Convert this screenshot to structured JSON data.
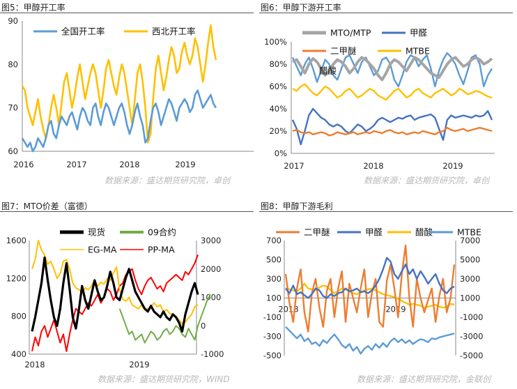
{
  "sources": {
    "top_left": "数据来源：盛达期货研究院，卓创",
    "top_right": "数据来源：盛达期货研究院，卓创",
    "bottom_left": "数据来源：盛达期货研究院，WIND",
    "bottom_right": "数据来源：盛达期货研究院，金联创"
  },
  "chart_data": [
    {
      "title": "图5：甲醇开工率",
      "type": "line",
      "x_ticks": [
        "2016",
        "2017",
        "2018",
        "2019"
      ],
      "ylim": [
        60,
        90
      ],
      "y_ticks": [
        "60",
        "70",
        "80",
        "90"
      ],
      "legend_position": "top",
      "series": [
        {
          "name": "全国开工率",
          "color": "#5B9BD5",
          "values": [
            63,
            62,
            61,
            62,
            60,
            61,
            63,
            62,
            61,
            63,
            66,
            67,
            64,
            63,
            66,
            68,
            67,
            66,
            68,
            69,
            67,
            65,
            68,
            70,
            69,
            67,
            66,
            70,
            71,
            68,
            66,
            69,
            71,
            70,
            68,
            66,
            68,
            70,
            71,
            69,
            66,
            64,
            66,
            69,
            71,
            68,
            66,
            62,
            63,
            67,
            70,
            71,
            69,
            66,
            68,
            70,
            72,
            71,
            69,
            67,
            70,
            71,
            72,
            71,
            69,
            70,
            73,
            74,
            72,
            70,
            71,
            72,
            73,
            71,
            70
          ]
        },
        {
          "name": "西北开工率",
          "color": "#FFC000",
          "values": [
            75,
            74,
            70,
            68,
            66,
            69,
            72,
            68,
            65,
            63,
            66,
            70,
            73,
            70,
            66,
            71,
            76,
            78,
            74,
            70,
            73,
            77,
            80,
            76,
            72,
            75,
            78,
            80,
            78,
            74,
            70,
            74,
            79,
            81,
            78,
            75,
            73,
            77,
            80,
            78,
            74,
            70,
            66,
            72,
            78,
            80,
            76,
            70,
            62,
            64,
            72,
            79,
            82,
            78,
            74,
            77,
            81,
            84,
            82,
            78,
            79,
            83,
            85,
            82,
            80,
            82,
            86,
            84,
            80,
            76,
            80,
            85,
            89,
            84,
            81
          ]
        }
      ]
    },
    {
      "title": "图6：甲醇下游开工率",
      "type": "line",
      "x_ticks": [
        "2017",
        "2018",
        "2019"
      ],
      "ylim": [
        0,
        100
      ],
      "y_ticks": [
        "0%",
        "20%",
        "40%",
        "60%",
        "80%",
        "100%"
      ],
      "legend_position": "top",
      "series": [
        {
          "name": "MTO/MTP",
          "color": "#A5A5A5",
          "values": [
            82,
            84,
            78,
            72,
            80,
            85,
            82,
            76,
            70,
            74,
            80,
            84,
            82,
            78,
            72,
            76,
            82,
            86,
            84,
            80,
            76,
            70,
            66,
            72,
            80,
            84,
            82,
            78,
            74,
            80,
            86,
            84,
            80,
            76,
            72,
            70,
            68,
            74,
            80,
            84,
            86,
            82,
            78,
            80,
            84,
            86,
            84,
            80,
            82,
            85
          ]
        },
        {
          "name": "甲醛",
          "color": "#4472C4",
          "values": [
            30,
            22,
            8,
            20,
            34,
            40,
            36,
            32,
            30,
            26,
            24,
            26,
            24,
            20,
            18,
            22,
            26,
            24,
            20,
            22,
            25,
            30,
            32,
            30,
            28,
            30,
            32,
            31,
            33,
            34,
            30,
            32,
            33,
            34,
            35,
            32,
            22,
            12,
            30,
            34,
            32,
            33,
            34,
            33,
            32,
            34,
            33,
            34,
            38,
            30
          ]
        },
        {
          "name": "二甲醚",
          "color": "#ED7D31",
          "values": [
            20,
            21,
            19,
            18,
            19,
            17,
            18,
            19,
            18,
            16,
            17,
            19,
            18,
            17,
            18,
            19,
            17,
            18,
            19,
            18,
            20,
            19,
            18,
            20,
            21,
            19,
            18,
            19,
            17,
            18,
            19,
            18,
            20,
            19,
            18,
            17,
            19,
            20,
            23,
            21,
            20,
            21,
            22,
            20,
            21,
            22,
            23,
            22,
            21,
            20
          ]
        },
        {
          "name": "MTBE",
          "color": "#FFC000",
          "values": [
            58,
            56,
            60,
            62,
            58,
            54,
            52,
            56,
            60,
            58,
            54,
            50,
            52,
            56,
            58,
            54,
            50,
            52,
            55,
            58,
            56,
            52,
            50,
            48,
            52,
            56,
            58,
            54,
            50,
            52,
            56,
            58,
            54,
            52,
            50,
            54,
            56,
            58,
            55,
            52,
            54,
            58,
            56,
            53,
            54,
            56,
            55,
            53,
            51,
            50
          ]
        },
        {
          "name": "醋酸",
          "color": "#5B9BD5",
          "values": [
            86,
            78,
            70,
            80,
            86,
            76,
            64,
            74,
            84,
            80,
            70,
            66,
            76,
            86,
            88,
            80,
            72,
            82,
            86,
            78,
            70,
            74,
            84,
            86,
            80,
            66,
            60,
            70,
            82,
            88,
            86,
            78,
            84,
            88,
            76,
            60,
            74,
            84,
            90,
            86,
            80,
            70,
            62,
            74,
            86,
            88,
            80,
            60,
            70,
            76
          ]
        }
      ]
    },
    {
      "title": "图7：MTO价差（富德）",
      "type": "line",
      "x_ticks": [
        "2018",
        "2019"
      ],
      "y_left_ticks": [
        "400",
        "800",
        "1200",
        "1600"
      ],
      "y_left_lim": [
        400,
        1600
      ],
      "y_right_ticks": [
        "-1000",
        "0",
        "1000",
        "2000",
        "3000"
      ],
      "y_right_lim": [
        -1000,
        3000
      ],
      "legend_position": "top",
      "series": [
        {
          "name": "现货",
          "color": "#000000",
          "axis": "right",
          "start": 0,
          "values": [
            -200,
            300,
            900,
            1500,
            2400,
            1600,
            900,
            300,
            0,
            600,
            1500,
            2200,
            1300,
            300,
            -100,
            600,
            1400,
            900,
            600,
            1100,
            1600,
            1200,
            900,
            1000,
            1400,
            1900,
            1500,
            1000,
            900,
            1300,
            1700,
            2000,
            1600,
            1200,
            1000,
            800,
            600,
            500,
            700,
            500,
            400,
            300,
            500,
            300,
            200,
            400,
            300,
            100,
            -200,
            400,
            800,
            1200,
            1500,
            1100
          ]
        },
        {
          "name": "09合约",
          "color": "#70AD47",
          "axis": "right",
          "start": 28,
          "values": [
            600,
            300,
            0,
            -300,
            -200,
            -500,
            -400,
            -300,
            -600,
            -400,
            -200,
            -300,
            -500,
            -400,
            -200,
            -100,
            -300,
            -200,
            0,
            -100,
            -300,
            -400,
            -100,
            -300,
            -500,
            0,
            300,
            600,
            900,
            1100
          ]
        },
        {
          "name": "EG-MA",
          "color": "#FFC000",
          "axis": "left",
          "start": 0,
          "values": [
            1300,
            1400,
            1600,
            1500,
            1450,
            1350,
            1380,
            1300,
            1200,
            1250,
            1380,
            1400,
            1300,
            1150,
            1100,
            1080,
            1050,
            1100,
            1080,
            1120,
            1180,
            1120,
            1160,
            1140,
            1200,
            1180,
            1260,
            1320,
            1080,
            980,
            960,
            1000,
            920,
            900,
            880,
            920,
            870,
            880,
            900,
            940,
            900,
            920,
            850,
            870,
            830,
            820,
            800,
            760,
            720,
            740,
            780,
            820,
            900,
            920
          ]
        },
        {
          "name": "PP-MA",
          "color": "#FF0000",
          "axis": "right",
          "start": 0,
          "values": [
            -900,
            -400,
            -700,
            -200,
            0,
            -400,
            -100,
            200,
            -200,
            -600,
            -300,
            -900,
            -300,
            200,
            600,
            500,
            400,
            600,
            800,
            700,
            900,
            1100,
            800,
            1000,
            1300,
            1200,
            900,
            1100,
            1400,
            1500,
            1800,
            1900,
            2000,
            1600,
            1300,
            1100,
            1400,
            1600,
            1700,
            1500,
            1300,
            1400,
            1200,
            1500,
            1600,
            1700,
            1800,
            1700,
            1600,
            1900,
            1800,
            2000,
            2200,
            2500
          ]
        }
      ]
    },
    {
      "title": "图8：甲醇下游毛利",
      "type": "line",
      "x_ticks": [
        "2018",
        "2019"
      ],
      "y_left_ticks": [
        "-500",
        "-300",
        "-100",
        "100",
        "300",
        "500",
        "700"
      ],
      "y_left_lim": [
        -500,
        700
      ],
      "y_right_ticks": [
        "-5000",
        "-3000",
        "-1000",
        "1000",
        "3000",
        "5000",
        "7000"
      ],
      "y_right_lim": [
        -5000,
        7000
      ],
      "legend_position": "top",
      "series": [
        {
          "name": "二甲醚",
          "color": "#ED7D31",
          "axis": "left",
          "values": [
            350,
            50,
            -150,
            200,
            400,
            -50,
            -250,
            150,
            300,
            0,
            -200,
            180,
            300,
            -100,
            200,
            380,
            -150,
            250,
            100,
            -50,
            200,
            400,
            -100,
            150,
            300,
            -150,
            -200,
            280,
            450,
            200,
            -100,
            350,
            650,
            100,
            -200,
            300,
            100,
            -50,
            80,
            200,
            -150,
            120,
            300,
            -50,
            100,
            450
          ]
        },
        {
          "name": "甲醛",
          "color": "#4472C4",
          "axis": "left",
          "values": [
            200,
            150,
            230,
            140,
            160,
            130,
            100,
            140,
            200,
            180,
            120,
            100,
            140,
            120,
            150,
            160,
            200,
            170,
            180,
            200,
            160,
            170,
            150,
            180,
            230,
            300,
            400,
            520,
            480,
            350,
            300,
            380,
            450,
            350,
            400,
            300,
            380,
            320,
            250,
            300,
            350,
            250,
            180,
            150,
            200,
            220
          ]
        },
        {
          "name": "醋酸",
          "color": "#FFC000",
          "axis": "right",
          "values": [
            2000,
            1900,
            1800,
            1700,
            2000,
            2500,
            2000,
            1900,
            1800,
            2100,
            2300,
            2200,
            1800,
            1500,
            1700,
            2000,
            1900,
            1700,
            1500,
            1400,
            1600,
            1800,
            1900,
            2000,
            1800,
            1600,
            1400,
            1300,
            1200,
            1100,
            900,
            700,
            500,
            300,
            400,
            300,
            200,
            0,
            100,
            200,
            300,
            100,
            0,
            100,
            400,
            300
          ]
        },
        {
          "name": "MTBE",
          "color": "#5B9BD5",
          "axis": "right",
          "values": [
            -2000,
            -2400,
            -2800,
            -3200,
            -2800,
            -3500,
            -3200,
            -3800,
            -3600,
            -4000,
            -3400,
            -3700,
            -3200,
            -2800,
            -3300,
            -3900,
            -4200,
            -3800,
            -4500,
            -4100,
            -4800,
            -4300,
            -4000,
            -4400,
            -3800,
            -4200,
            -3700,
            -4100,
            -3500,
            -3200,
            -3600,
            -3300,
            -3700,
            -3400,
            -3800,
            -3500,
            -3300,
            -3400,
            -3600,
            -3200,
            -3300,
            -3100,
            -3000,
            -2900,
            -2800,
            -2700
          ]
        }
      ]
    }
  ]
}
